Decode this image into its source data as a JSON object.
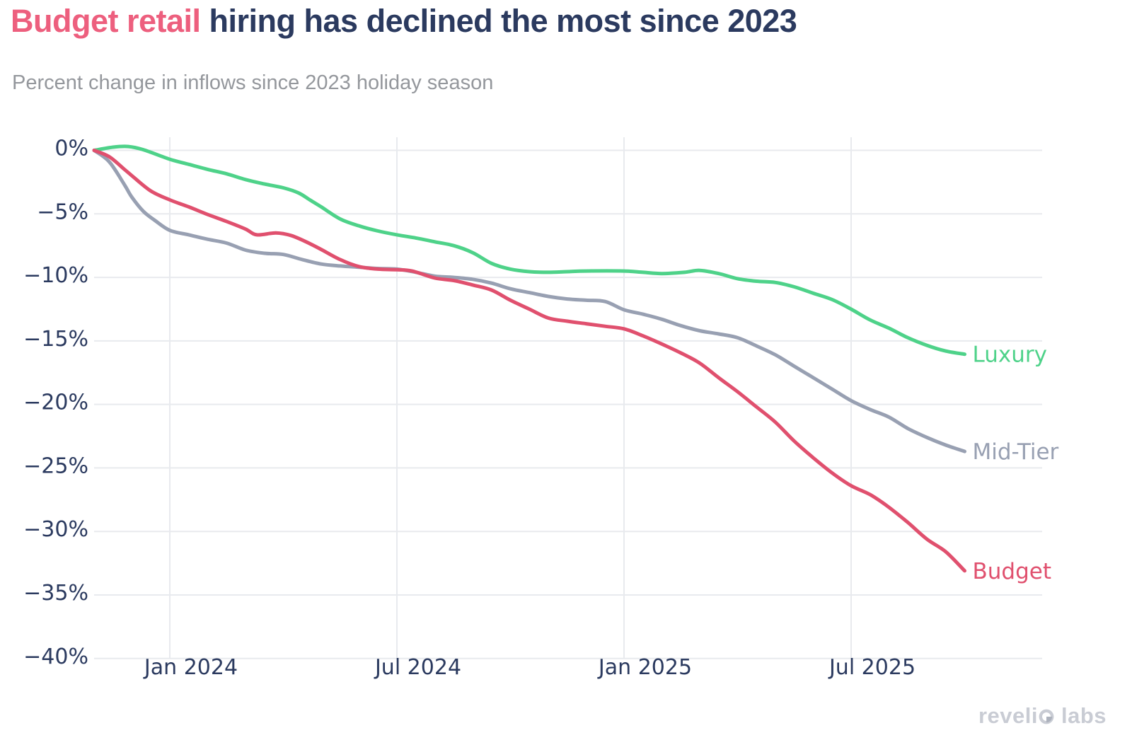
{
  "title": {
    "highlight": "Budget retail",
    "rest": " hiring has declined the most since 2023"
  },
  "subtitle": "Percent change in inflows since 2023 holiday season",
  "logo": {
    "part1": "reveli",
    "part2": "labs",
    "o_icon": "revelio-eye-o"
  },
  "colors": {
    "title_highlight": "#ed5f7e",
    "title_text": "#2b3a5f",
    "subtitle_text": "#94979c",
    "axis_text": "#2b3a5f",
    "gridline": "#e8eaee",
    "luxury": "#4ed289",
    "mid_tier": "#98a0b2",
    "budget": "#e0506e",
    "logo_text": "#c9ccd4",
    "background": "#ffffff"
  },
  "chart_data": {
    "type": "line",
    "title": "Budget retail hiring has declined the most since 2023",
    "subtitle": "Percent change in inflows since 2023 holiday season",
    "x_unit": "months since Nov 2023",
    "x_range_months": 23,
    "ylim": [
      -40,
      0.5
    ],
    "grid": true,
    "legend_position": "end-of-line labels",
    "x_ticks": [
      {
        "pos": 2,
        "label": "Jan 2024"
      },
      {
        "pos": 8,
        "label": "Jul 2024"
      },
      {
        "pos": 14,
        "label": "Jan 2025"
      },
      {
        "pos": 20,
        "label": "Jul 2025"
      }
    ],
    "y_ticks": [
      {
        "value": 0,
        "label": "0%"
      },
      {
        "value": -5,
        "label": "−5%"
      },
      {
        "value": -10,
        "label": "−10%"
      },
      {
        "value": -15,
        "label": "−15%"
      },
      {
        "value": -20,
        "label": "−20%"
      },
      {
        "value": -25,
        "label": "−25%"
      },
      {
        "value": -30,
        "label": "−30%"
      },
      {
        "value": -35,
        "label": "−35%"
      },
      {
        "value": -40,
        "label": "−40%"
      }
    ],
    "series": [
      {
        "name": "Luxury",
        "color": "#4ed289",
        "points": [
          [
            0,
            0
          ],
          [
            0.5,
            0.25
          ],
          [
            0.9,
            0.3
          ],
          [
            1.3,
            0.05
          ],
          [
            2,
            -0.7
          ],
          [
            2.5,
            -1.1
          ],
          [
            3,
            -1.5
          ],
          [
            3.5,
            -1.85
          ],
          [
            4,
            -2.3
          ],
          [
            4.5,
            -2.65
          ],
          [
            5,
            -2.95
          ],
          [
            5.4,
            -3.35
          ],
          [
            5.7,
            -3.9
          ],
          [
            6,
            -4.45
          ],
          [
            6.5,
            -5.4
          ],
          [
            7,
            -5.95
          ],
          [
            7.5,
            -6.35
          ],
          [
            8,
            -6.65
          ],
          [
            8.5,
            -6.9
          ],
          [
            9,
            -7.2
          ],
          [
            9.5,
            -7.5
          ],
          [
            10,
            -8.05
          ],
          [
            10.5,
            -8.9
          ],
          [
            11,
            -9.35
          ],
          [
            11.5,
            -9.55
          ],
          [
            12,
            -9.6
          ],
          [
            12.5,
            -9.55
          ],
          [
            13,
            -9.5
          ],
          [
            14,
            -9.5
          ],
          [
            14.5,
            -9.6
          ],
          [
            15,
            -9.7
          ],
          [
            15.6,
            -9.6
          ],
          [
            16,
            -9.45
          ],
          [
            16.5,
            -9.7
          ],
          [
            17,
            -10.1
          ],
          [
            17.5,
            -10.3
          ],
          [
            18,
            -10.4
          ],
          [
            18.5,
            -10.75
          ],
          [
            19,
            -11.25
          ],
          [
            19.5,
            -11.75
          ],
          [
            20,
            -12.5
          ],
          [
            20.5,
            -13.35
          ],
          [
            21,
            -14.0
          ],
          [
            21.5,
            -14.75
          ],
          [
            22,
            -15.35
          ],
          [
            22.5,
            -15.8
          ],
          [
            23,
            -16.05
          ]
        ]
      },
      {
        "name": "Mid-Tier",
        "color": "#98a0b2",
        "points": [
          [
            0,
            0
          ],
          [
            0.4,
            -0.9
          ],
          [
            0.8,
            -2.7
          ],
          [
            1,
            -3.7
          ],
          [
            1.3,
            -4.8
          ],
          [
            1.6,
            -5.5
          ],
          [
            2,
            -6.3
          ],
          [
            2.5,
            -6.65
          ],
          [
            3,
            -7.0
          ],
          [
            3.5,
            -7.3
          ],
          [
            4,
            -7.85
          ],
          [
            4.5,
            -8.1
          ],
          [
            5,
            -8.2
          ],
          [
            5.5,
            -8.6
          ],
          [
            6,
            -8.95
          ],
          [
            6.5,
            -9.1
          ],
          [
            7,
            -9.2
          ],
          [
            7.5,
            -9.3
          ],
          [
            8,
            -9.35
          ],
          [
            8.5,
            -9.6
          ],
          [
            9,
            -9.9
          ],
          [
            9.5,
            -10.0
          ],
          [
            10,
            -10.15
          ],
          [
            10.5,
            -10.45
          ],
          [
            11,
            -10.9
          ],
          [
            11.5,
            -11.2
          ],
          [
            12,
            -11.5
          ],
          [
            12.5,
            -11.7
          ],
          [
            13,
            -11.8
          ],
          [
            13.5,
            -11.9
          ],
          [
            14,
            -12.55
          ],
          [
            14.5,
            -12.9
          ],
          [
            15,
            -13.3
          ],
          [
            15.5,
            -13.8
          ],
          [
            16,
            -14.2
          ],
          [
            16.5,
            -14.45
          ],
          [
            17,
            -14.75
          ],
          [
            17.5,
            -15.4
          ],
          [
            18,
            -16.1
          ],
          [
            18.5,
            -17.0
          ],
          [
            19,
            -17.9
          ],
          [
            19.5,
            -18.8
          ],
          [
            20,
            -19.7
          ],
          [
            20.5,
            -20.4
          ],
          [
            21,
            -21.0
          ],
          [
            21.5,
            -21.9
          ],
          [
            22,
            -22.6
          ],
          [
            22.5,
            -23.2
          ],
          [
            23,
            -23.7
          ]
        ]
      },
      {
        "name": "Budget",
        "color": "#e0506e",
        "points": [
          [
            0,
            0
          ],
          [
            0.4,
            -0.5
          ],
          [
            0.8,
            -1.5
          ],
          [
            1,
            -2.0
          ],
          [
            1.5,
            -3.2
          ],
          [
            2,
            -3.9
          ],
          [
            2.5,
            -4.45
          ],
          [
            3,
            -5.05
          ],
          [
            3.5,
            -5.6
          ],
          [
            4,
            -6.2
          ],
          [
            4.3,
            -6.65
          ],
          [
            4.8,
            -6.5
          ],
          [
            5.2,
            -6.7
          ],
          [
            5.6,
            -7.2
          ],
          [
            6,
            -7.8
          ],
          [
            6.5,
            -8.6
          ],
          [
            7,
            -9.15
          ],
          [
            7.5,
            -9.35
          ],
          [
            8,
            -9.4
          ],
          [
            8.4,
            -9.5
          ],
          [
            9,
            -10.05
          ],
          [
            9.5,
            -10.25
          ],
          [
            10,
            -10.6
          ],
          [
            10.5,
            -11.0
          ],
          [
            11,
            -11.8
          ],
          [
            11.5,
            -12.5
          ],
          [
            12,
            -13.2
          ],
          [
            12.5,
            -13.45
          ],
          [
            13,
            -13.65
          ],
          [
            13.5,
            -13.85
          ],
          [
            14,
            -14.05
          ],
          [
            14.5,
            -14.6
          ],
          [
            15,
            -15.25
          ],
          [
            15.5,
            -15.95
          ],
          [
            16,
            -16.75
          ],
          [
            16.5,
            -17.9
          ],
          [
            17,
            -19.0
          ],
          [
            17.5,
            -20.2
          ],
          [
            18,
            -21.4
          ],
          [
            18.5,
            -22.9
          ],
          [
            19,
            -24.2
          ],
          [
            19.5,
            -25.4
          ],
          [
            20,
            -26.4
          ],
          [
            20.5,
            -27.1
          ],
          [
            21,
            -28.1
          ],
          [
            21.5,
            -29.3
          ],
          [
            22,
            -30.6
          ],
          [
            22.5,
            -31.6
          ],
          [
            23,
            -33.1
          ]
        ]
      }
    ]
  }
}
